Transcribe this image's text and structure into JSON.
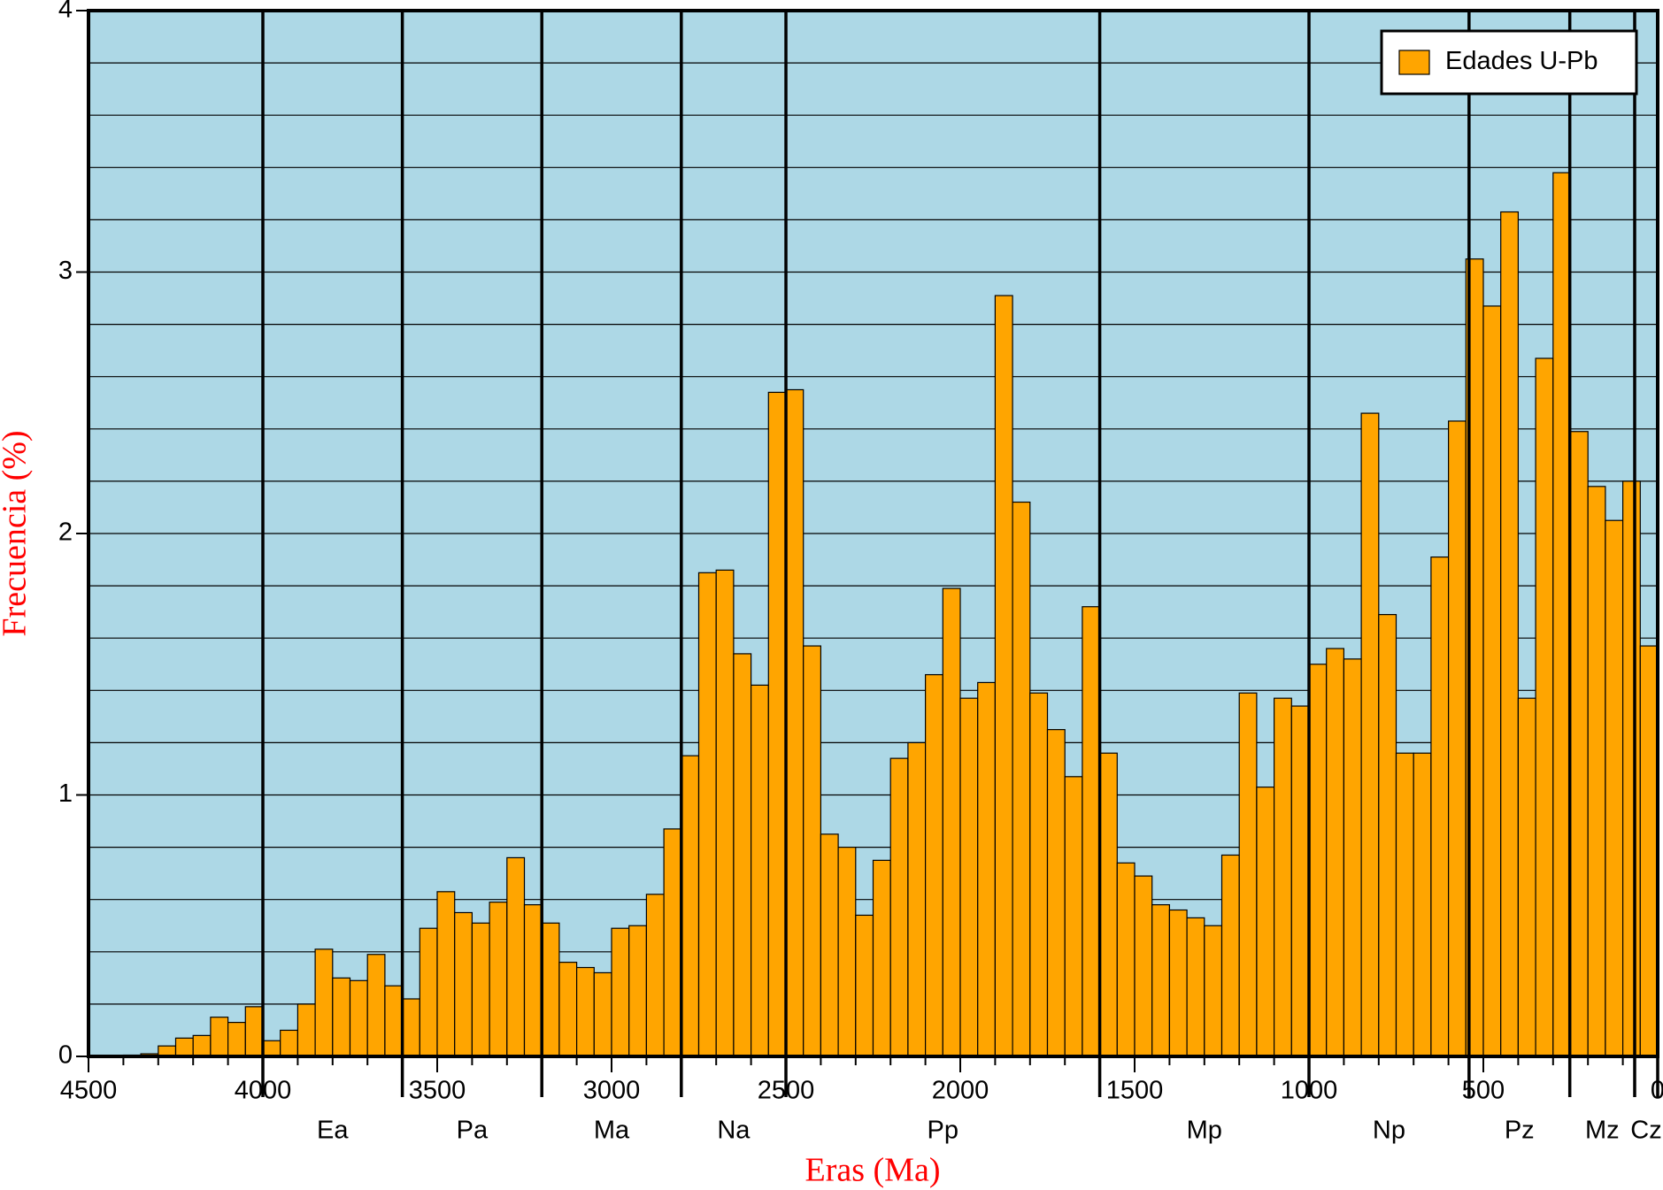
{
  "chart_data": {
    "type": "histogram",
    "xlabel": "Eras (Ma)",
    "ylabel": "Frecuencia (%)",
    "bins": [
      4500,
      4450,
      4400,
      4350,
      4300,
      4250,
      4200,
      4150,
      4100,
      4050,
      4000,
      3950,
      3900,
      3850,
      3800,
      3750,
      3700,
      3650,
      3600,
      3550,
      3500,
      3450,
      3400,
      3350,
      3300,
      3250,
      3200,
      3150,
      3100,
      3050,
      3000,
      2950,
      2900,
      2850,
      2800,
      2750,
      2700,
      2650,
      2600,
      2550,
      2500,
      2450,
      2400,
      2350,
      2300,
      2250,
      2200,
      2150,
      2100,
      2050,
      2000,
      1950,
      1900,
      1850,
      1800,
      1750,
      1700,
      1650,
      1600,
      1550,
      1500,
      1450,
      1400,
      1350,
      1300,
      1250,
      1200,
      1150,
      1100,
      1050,
      1000,
      950,
      900,
      850,
      800,
      750,
      700,
      650,
      600,
      550,
      500,
      450,
      400,
      350,
      300,
      250,
      200,
      150,
      100,
      50,
      0
    ],
    "series": [
      {
        "name": "Edades U-Pb",
        "color": "#ffa500",
        "values": [
          0,
          0,
          0.005,
          0.01,
          0.04,
          0.07,
          0.08,
          0.15,
          0.13,
          0.19,
          0.06,
          0.1,
          0.2,
          0.41,
          0.3,
          0.29,
          0.39,
          0.27,
          0.22,
          0.49,
          0.63,
          0.55,
          0.51,
          0.59,
          0.76,
          0.58,
          0.51,
          0.36,
          0.34,
          0.32,
          0.49,
          0.5,
          0.62,
          0.87,
          1.15,
          1.85,
          1.86,
          1.54,
          1.42,
          2.54,
          2.55,
          1.57,
          0.85,
          0.8,
          0.54,
          0.75,
          1.14,
          1.2,
          1.46,
          1.79,
          1.37,
          1.43,
          2.91,
          2.12,
          1.39,
          1.25,
          1.07,
          1.72,
          1.16,
          0.74,
          0.69,
          0.58,
          0.56,
          0.53,
          0.5,
          0.77,
          1.39,
          1.03,
          1.37,
          1.34,
          1.5,
          1.56,
          1.52,
          2.46,
          1.69,
          1.16,
          1.16,
          1.91,
          2.43,
          3.05,
          2.87,
          3.23,
          1.37,
          2.67,
          3.38,
          2.39,
          2.18,
          2.05,
          2.2,
          1.57
        ]
      }
    ],
    "xlim": [
      4500,
      0
    ],
    "xticks": [
      4500,
      4000,
      3500,
      3000,
      2500,
      2000,
      1500,
      1000,
      500,
      0
    ],
    "minor_xticks": [
      4500,
      4400,
      4300,
      4200,
      4100,
      4000,
      3900,
      3800,
      3700,
      3600,
      3500,
      3400,
      3300,
      3200,
      3100,
      3000,
      2900,
      2800,
      2700,
      2600,
      2500,
      2400,
      2300,
      2200,
      2100,
      2000,
      1900,
      1800,
      1700,
      1600,
      1500,
      1400,
      1300,
      1200,
      1100,
      1000,
      900,
      800,
      700,
      600,
      500,
      400,
      300,
      200,
      100,
      0
    ],
    "ylim": [
      0,
      4
    ],
    "yticks": [
      0,
      1,
      2,
      3,
      4
    ],
    "minor_yticks": [
      0.2,
      0.4,
      0.6,
      0.8,
      1.2,
      1.4,
      1.6,
      1.8,
      2.2,
      2.4,
      2.6,
      2.8,
      3.2,
      3.4,
      3.6,
      3.8
    ],
    "era_boundaries": [
      4000,
      3600,
      3200,
      2800,
      2500,
      1600,
      1000,
      541,
      252,
      66,
      0
    ],
    "eras": [
      "Ea",
      "Pa",
      "Ma",
      "Na",
      "Pp",
      "Mp",
      "Np",
      "Pz",
      "Mz",
      "Cz"
    ],
    "background": "#add8e6",
    "grid": true,
    "legend": "upper right"
  }
}
